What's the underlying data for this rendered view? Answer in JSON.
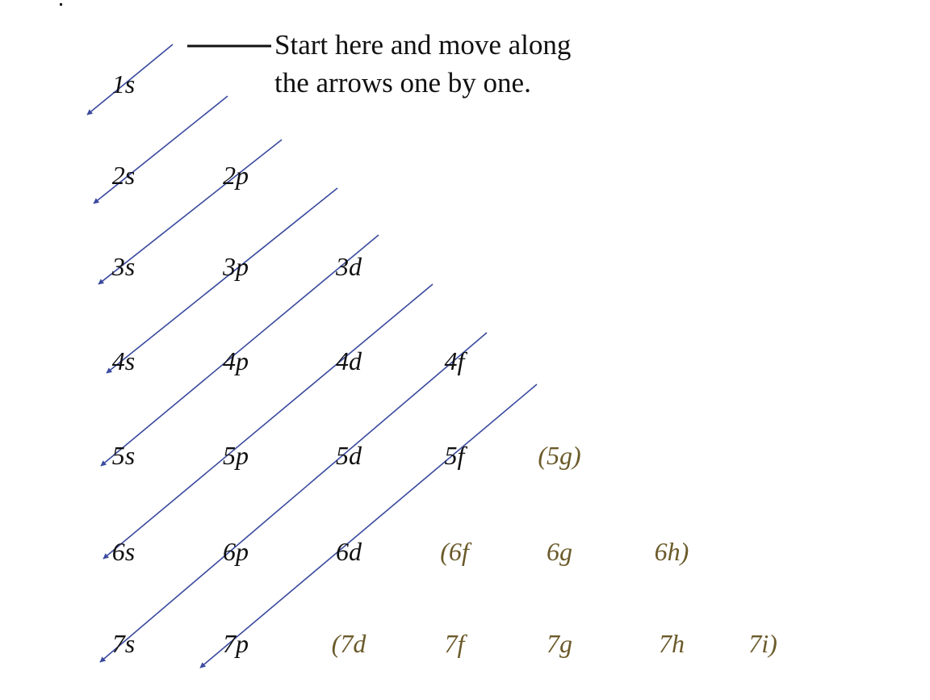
{
  "caption": {
    "line1": "Start here and move along",
    "line2": "the arrows one by one."
  },
  "colors": {
    "arrow": "#3a4a9e",
    "filled_label": "#111111",
    "hypothetical_label": "#6b5a2a",
    "pointer_line": "#111111"
  },
  "rows": [
    {
      "labels": [
        {
          "text": "1s",
          "kind": "filled"
        }
      ]
    },
    {
      "labels": [
        {
          "text": "2s",
          "kind": "filled"
        },
        {
          "text": "2p",
          "kind": "filled"
        }
      ]
    },
    {
      "labels": [
        {
          "text": "3s",
          "kind": "filled"
        },
        {
          "text": "3p",
          "kind": "filled"
        },
        {
          "text": "3d",
          "kind": "filled"
        }
      ]
    },
    {
      "labels": [
        {
          "text": "4s",
          "kind": "filled"
        },
        {
          "text": "4p",
          "kind": "filled"
        },
        {
          "text": "4d",
          "kind": "filled"
        },
        {
          "text": "4f",
          "kind": "filled"
        }
      ]
    },
    {
      "labels": [
        {
          "text": "5s",
          "kind": "filled"
        },
        {
          "text": "5p",
          "kind": "filled"
        },
        {
          "text": "5d",
          "kind": "filled"
        },
        {
          "text": "5f",
          "kind": "filled"
        },
        {
          "text": "(5g)",
          "kind": "hypothetical"
        }
      ]
    },
    {
      "labels": [
        {
          "text": "6s",
          "kind": "filled"
        },
        {
          "text": "6p",
          "kind": "filled"
        },
        {
          "text": "6d",
          "kind": "filled"
        },
        {
          "text": "(6f",
          "kind": "hypothetical"
        },
        {
          "text": "6g",
          "kind": "hypothetical"
        },
        {
          "text": "6h)",
          "kind": "hypothetical"
        }
      ]
    },
    {
      "labels": [
        {
          "text": "7s",
          "kind": "filled"
        },
        {
          "text": "7p",
          "kind": "filled"
        },
        {
          "text": "(7d",
          "kind": "hypothetical"
        },
        {
          "text": "7f",
          "kind": "hypothetical"
        },
        {
          "text": "7g",
          "kind": "hypothetical"
        },
        {
          "text": "7h",
          "kind": "hypothetical"
        },
        {
          "text": "7i)",
          "kind": "hypothetical"
        }
      ]
    }
  ],
  "arrow_order": [
    "1s",
    "2s",
    "2p 3s",
    "3p 4s",
    "3d 4p 5s",
    "4d 5p 6s",
    "4f 5d 6p 7s",
    "5f 6d 7p"
  ]
}
